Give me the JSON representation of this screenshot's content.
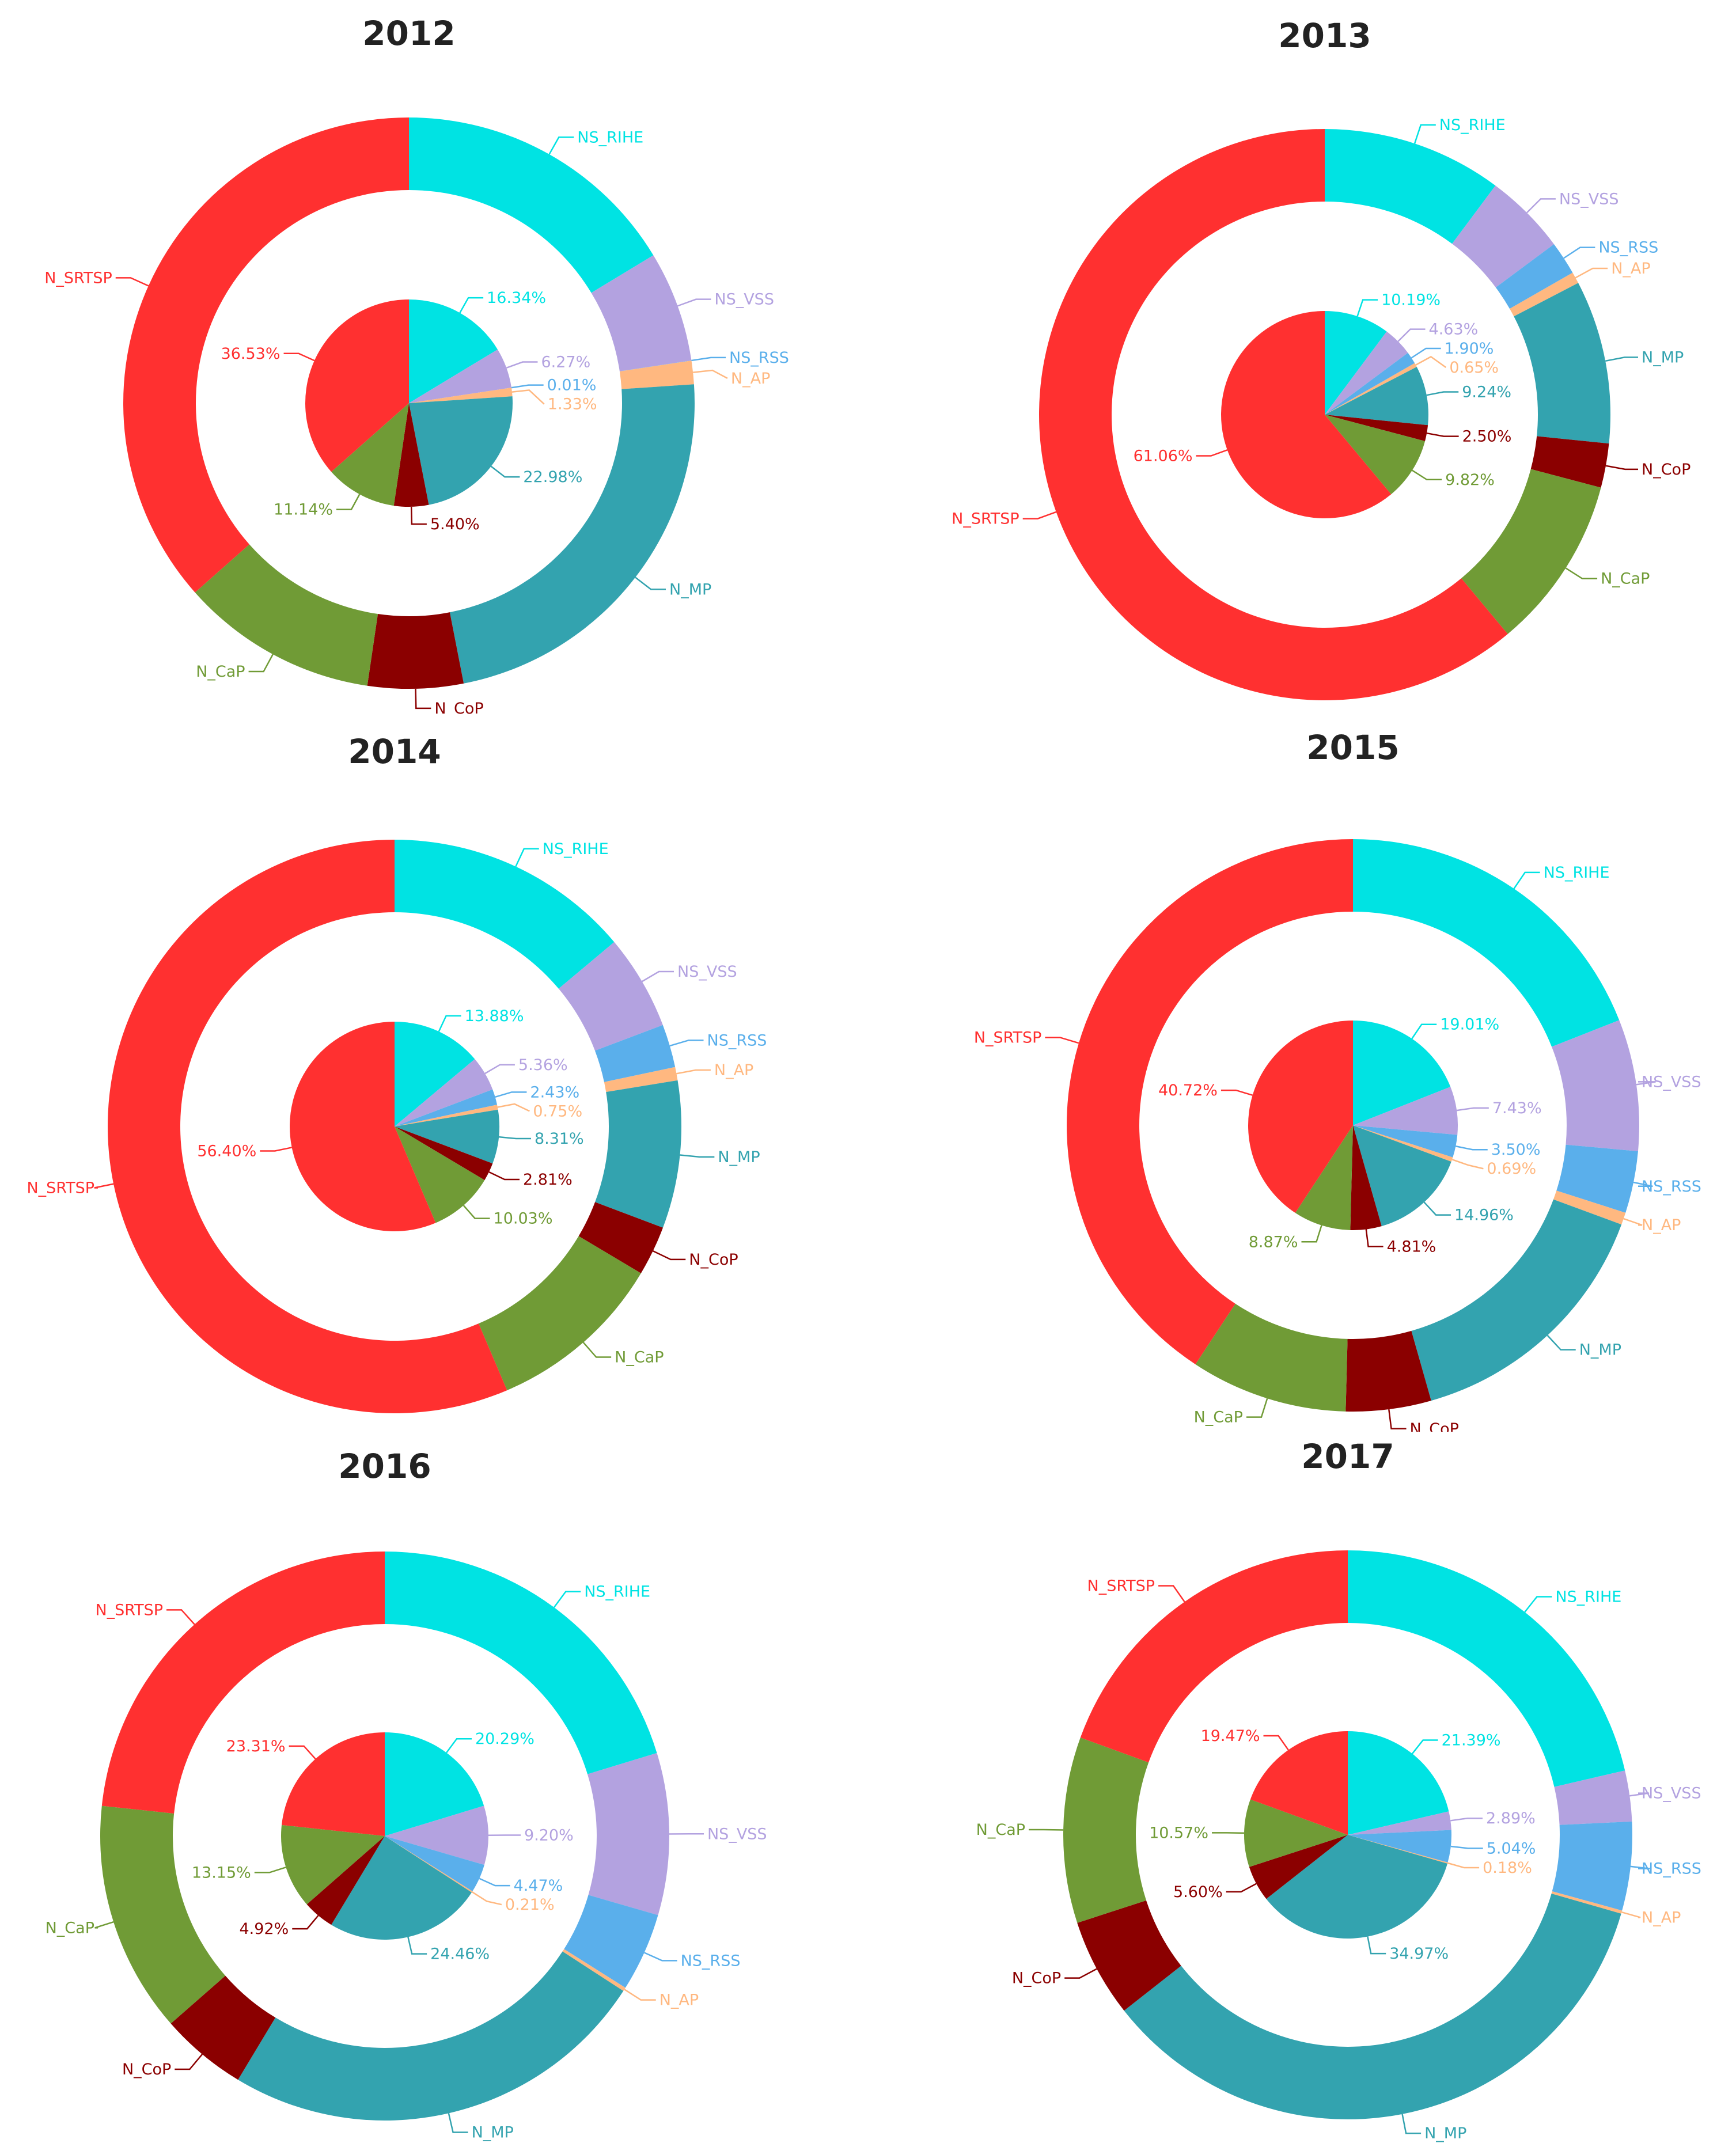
{
  "categories": [
    "NS_RIHE",
    "NS_VSS",
    "NS_RSS",
    "N_AP",
    "N_MP",
    "N_CoP",
    "N_CaP",
    "N_SRTSP"
  ],
  "colors": {
    "NS_RIHE": "#00E3E3",
    "NS_VSS": "#B3A2E0",
    "NS_RSS": "#5AAFEB",
    "N_AP": "#FFB880",
    "N_MP": "#33A3AF",
    "N_CoP": "#8B0000",
    "N_CaP": "#709B36",
    "N_SRTSP": "#FF3030"
  },
  "chart_data": [
    {
      "type": "pie",
      "title": "2012",
      "categories": [
        "NS_RIHE",
        "NS_VSS",
        "NS_RSS",
        "N_AP",
        "N_MP",
        "N_CoP",
        "N_CaP",
        "N_SRTSP"
      ],
      "values": [
        16.34,
        6.27,
        0.01,
        1.33,
        22.98,
        5.4,
        11.14,
        36.53
      ],
      "value_labels": [
        "16.34%",
        "6.27%",
        "0.01%",
        "1.33%",
        "22.98%",
        "5.40%",
        "11.14%",
        "36.53%"
      ]
    },
    {
      "type": "pie",
      "title": "2013",
      "categories": [
        "NS_RIHE",
        "NS_VSS",
        "NS_RSS",
        "N_AP",
        "N_MP",
        "N_CoP",
        "N_CaP",
        "N_SRTSP"
      ],
      "values": [
        10.19,
        4.63,
        1.9,
        0.65,
        9.24,
        2.5,
        9.82,
        61.06
      ],
      "value_labels": [
        "10.19%",
        "4.63%",
        "1.90%",
        "0.65%",
        "9.24%",
        "2.50%",
        "9.82%",
        "61.06%"
      ]
    },
    {
      "type": "pie",
      "title": "2014",
      "categories": [
        "NS_RIHE",
        "NS_VSS",
        "NS_RSS",
        "N_AP",
        "N_MP",
        "N_CoP",
        "N_CaP",
        "N_SRTSP"
      ],
      "values": [
        13.88,
        5.36,
        2.43,
        0.75,
        8.31,
        2.81,
        10.03,
        56.4
      ],
      "value_labels": [
        "13.88%",
        "5.36%",
        "2.43%",
        "0.75%",
        "8.31%",
        "2.81%",
        "10.03%",
        "56.40%"
      ]
    },
    {
      "type": "pie",
      "title": "2015",
      "categories": [
        "NS_RIHE",
        "NS_VSS",
        "NS_RSS",
        "N_AP",
        "N_MP",
        "N_CoP",
        "N_CaP",
        "N_SRTSP"
      ],
      "values": [
        19.01,
        7.43,
        3.5,
        0.69,
        14.96,
        4.81,
        8.87,
        40.72
      ],
      "value_labels": [
        "19.01%",
        "7.43%",
        "3.50%",
        "0.69%",
        "14.96%",
        "4.81%",
        "8.87%",
        "40.72%"
      ]
    },
    {
      "type": "pie",
      "title": "2016",
      "categories": [
        "NS_RIHE",
        "NS_VSS",
        "NS_RSS",
        "N_AP",
        "N_MP",
        "N_CoP",
        "N_CaP",
        "N_SRTSP"
      ],
      "values": [
        20.29,
        9.2,
        4.47,
        0.21,
        24.46,
        4.92,
        13.15,
        23.31
      ],
      "value_labels": [
        "20.29%",
        "9.20%",
        "4.47%",
        "0.21%",
        "24.46%",
        "4.92%",
        "13.15%",
        "23.31%"
      ]
    },
    {
      "type": "pie",
      "title": "2017",
      "categories": [
        "NS_RIHE",
        "NS_VSS",
        "NS_RSS",
        "N_AP",
        "N_MP",
        "N_CoP",
        "N_CaP",
        "N_SRTSP"
      ],
      "values": [
        21.39,
        2.89,
        5.04,
        0.18,
        34.97,
        5.6,
        10.57,
        19.47
      ],
      "value_labels": [
        "21.39%",
        "2.89%",
        "5.04%",
        "0.18%",
        "34.97%",
        "5.60%",
        "10.57%",
        "19.47%"
      ]
    }
  ]
}
